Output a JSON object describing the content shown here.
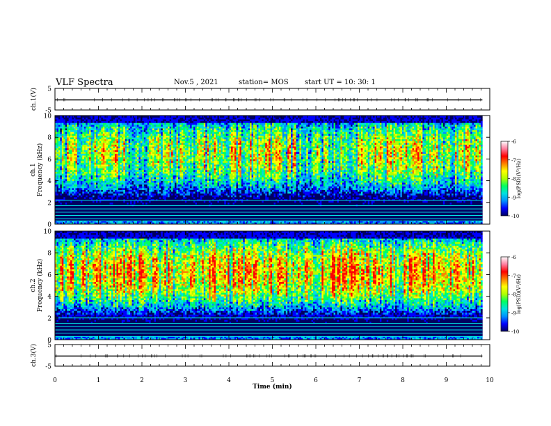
{
  "header": {
    "title": "VLF Spectra",
    "date": "Nov.5 , 2021",
    "station": "station= MOS",
    "start": "start UT = 10: 30: 1"
  },
  "colorbar": {
    "label": "log(PSD)(V²/Hz)",
    "ticks": [
      "-6",
      "-7",
      "-8",
      "-9",
      "-10"
    ],
    "colors": [
      "#000060",
      "#0000ff",
      "#0090ff",
      "#00e0e0",
      "#00ff60",
      "#b0ff00",
      "#ffff00",
      "#ff8000",
      "#ff0000",
      "#ff80a0",
      "#ffffff"
    ]
  },
  "chart_data": [
    {
      "type": "line",
      "name": "ch1-voltage",
      "ylabel": "ch.1(V)",
      "yticks": [
        "5",
        "-5"
      ],
      "ylim": [
        -5,
        5
      ],
      "xlim": [
        0,
        10
      ],
      "x": [
        0,
        9.83
      ],
      "y": [
        0,
        0
      ]
    },
    {
      "type": "heatmap",
      "name": "ch1-spectrogram",
      "ylabel": "ch.1\nFrequency (kHz)",
      "ylabel_lines": [
        "ch.1",
        "Frequency (kHz)"
      ],
      "yticks": [
        "0",
        "2",
        "4",
        "6",
        "8",
        "10"
      ],
      "ylim": [
        0,
        10
      ],
      "xlim": [
        0,
        10
      ],
      "x_end": 9.83,
      "zlim": [
        -10,
        -6
      ],
      "band_center_khz": 6.5,
      "lines_khz": [
        0.3,
        0.5,
        0.8,
        1.1,
        1.4,
        1.7,
        2.2
      ],
      "activity_profile": [
        0.55,
        0.6,
        0.55,
        0.6,
        0.65,
        0.6,
        0.55,
        0.7,
        0.65,
        0.6
      ]
    },
    {
      "type": "heatmap",
      "name": "ch2-spectrogram",
      "ylabel": "ch.2\nFrequency (kHz)",
      "ylabel_lines": [
        "ch.2",
        "Frequency (kHz)"
      ],
      "yticks": [
        "0",
        "2",
        "4",
        "6",
        "8",
        "10"
      ],
      "ylim": [
        0,
        10
      ],
      "xlim": [
        0,
        10
      ],
      "x_end": 9.83,
      "zlim": [
        -10,
        -6
      ],
      "band_center_khz": 6.2,
      "lines_khz": [
        0.3,
        0.6,
        0.9,
        1.2,
        1.5,
        2.0
      ],
      "activity_profile": [
        0.7,
        0.75,
        0.7,
        0.8,
        0.7,
        0.75,
        0.8,
        0.75,
        0.8,
        0.75
      ]
    },
    {
      "type": "line",
      "name": "ch3-voltage",
      "ylabel": "ch.3(V)",
      "yticks": [
        "5",
        "-5"
      ],
      "ylim": [
        -5,
        5
      ],
      "xlim": [
        0,
        10
      ],
      "x": [
        0,
        9.83
      ],
      "y": [
        0,
        0
      ]
    }
  ],
  "xaxis": {
    "label": "Time (min)",
    "ticks": [
      "0",
      "1",
      "2",
      "3",
      "4",
      "5",
      "6",
      "7",
      "8",
      "9",
      "10"
    ]
  }
}
